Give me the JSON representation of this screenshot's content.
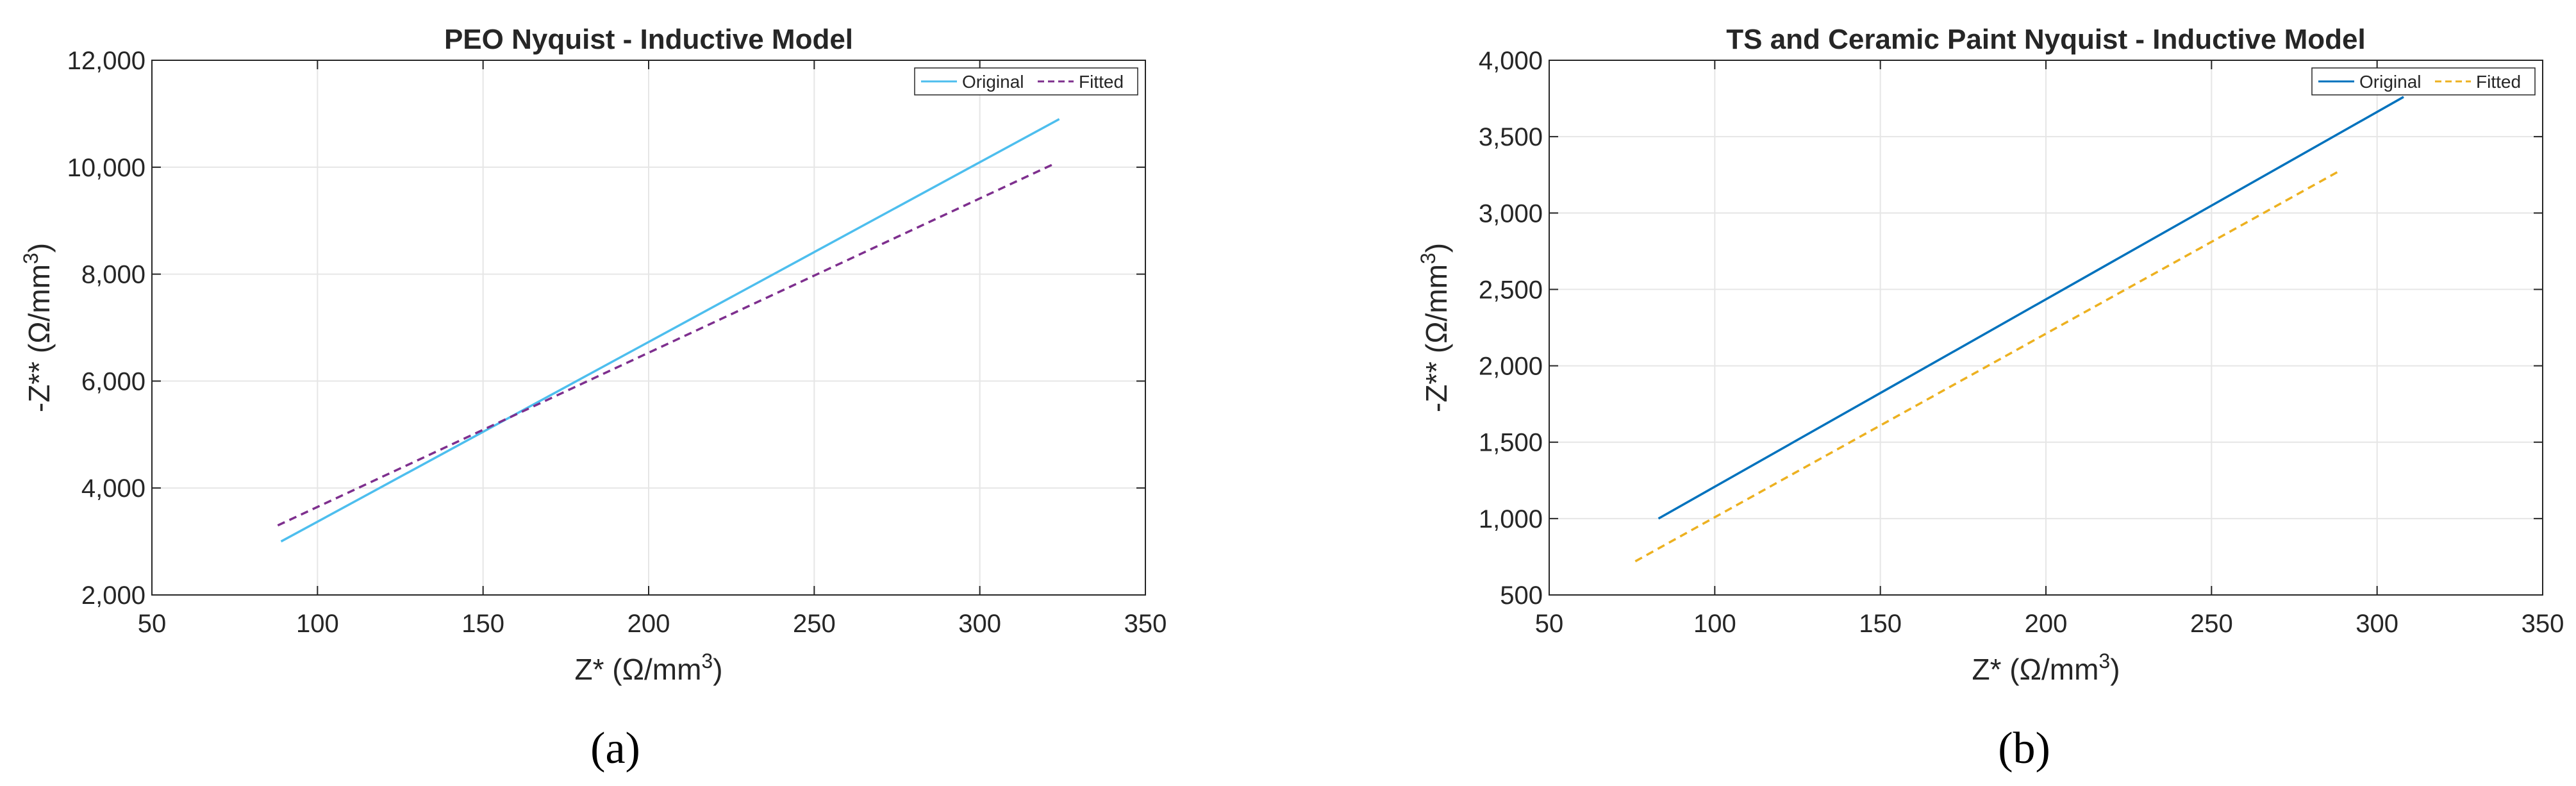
{
  "chart_data": [
    {
      "type": "line",
      "panel_label": "(a)",
      "title": "PEO Nyquist - Inductive Model",
      "xlabel": "Z* (Ω/mm",
      "xlabel_sup": "3",
      "xlabel_end": ")",
      "ylabel": "-Z** (Ω/mm",
      "ylabel_sup": "3",
      "ylabel_end": ")",
      "xlim": [
        50,
        350
      ],
      "ylim": [
        2000,
        12000
      ],
      "xticks": [
        50,
        100,
        150,
        200,
        250,
        300,
        350
      ],
      "xtick_labels": [
        "50",
        "100",
        "150",
        "200",
        "250",
        "300",
        "350"
      ],
      "yticks": [
        2000,
        4000,
        6000,
        8000,
        10000,
        12000
      ],
      "ytick_labels": [
        "2,000",
        "4,000",
        "6,000",
        "8,000",
        "10,000",
        "12,000"
      ],
      "grid": true,
      "legend_position": "top-right",
      "legend_layout": "horizontal",
      "series": [
        {
          "name": "Original",
          "color": "#4dbeee",
          "style": "solid",
          "x": [
            89,
            324
          ],
          "y": [
            3000,
            10900
          ]
        },
        {
          "name": "Fitted",
          "color": "#7e2f8e",
          "style": "dashed",
          "x": [
            88,
            322
          ],
          "y": [
            3300,
            10050
          ]
        }
      ]
    },
    {
      "type": "line",
      "panel_label": "(b)",
      "title": "TS and Ceramic Paint Nyquist - Inductive Model",
      "xlabel": "Z* (Ω/mm",
      "xlabel_sup": "3",
      "xlabel_end": ")",
      "ylabel": "-Z** (Ω/mm",
      "ylabel_sup": "3",
      "ylabel_end": ")",
      "xlim": [
        50,
        350
      ],
      "ylim": [
        500,
        4000
      ],
      "xticks": [
        50,
        100,
        150,
        200,
        250,
        300,
        350
      ],
      "xtick_labels": [
        "50",
        "100",
        "150",
        "200",
        "250",
        "300",
        "350"
      ],
      "yticks": [
        500,
        1000,
        1500,
        2000,
        2500,
        3000,
        3500,
        4000
      ],
      "ytick_labels": [
        "500",
        "1,000",
        "1,500",
        "2,000",
        "2,500",
        "3,000",
        "3,500",
        "4,000"
      ],
      "grid": true,
      "legend_position": "top-right",
      "legend_layout": "horizontal",
      "series": [
        {
          "name": "Original",
          "color": "#0072bd",
          "style": "solid",
          "x": [
            83,
            308
          ],
          "y": [
            1000,
            3760
          ]
        },
        {
          "name": "Fitted",
          "color": "#edb120",
          "style": "dashed",
          "x": [
            76,
            289
          ],
          "y": [
            720,
            3280
          ]
        }
      ]
    }
  ]
}
